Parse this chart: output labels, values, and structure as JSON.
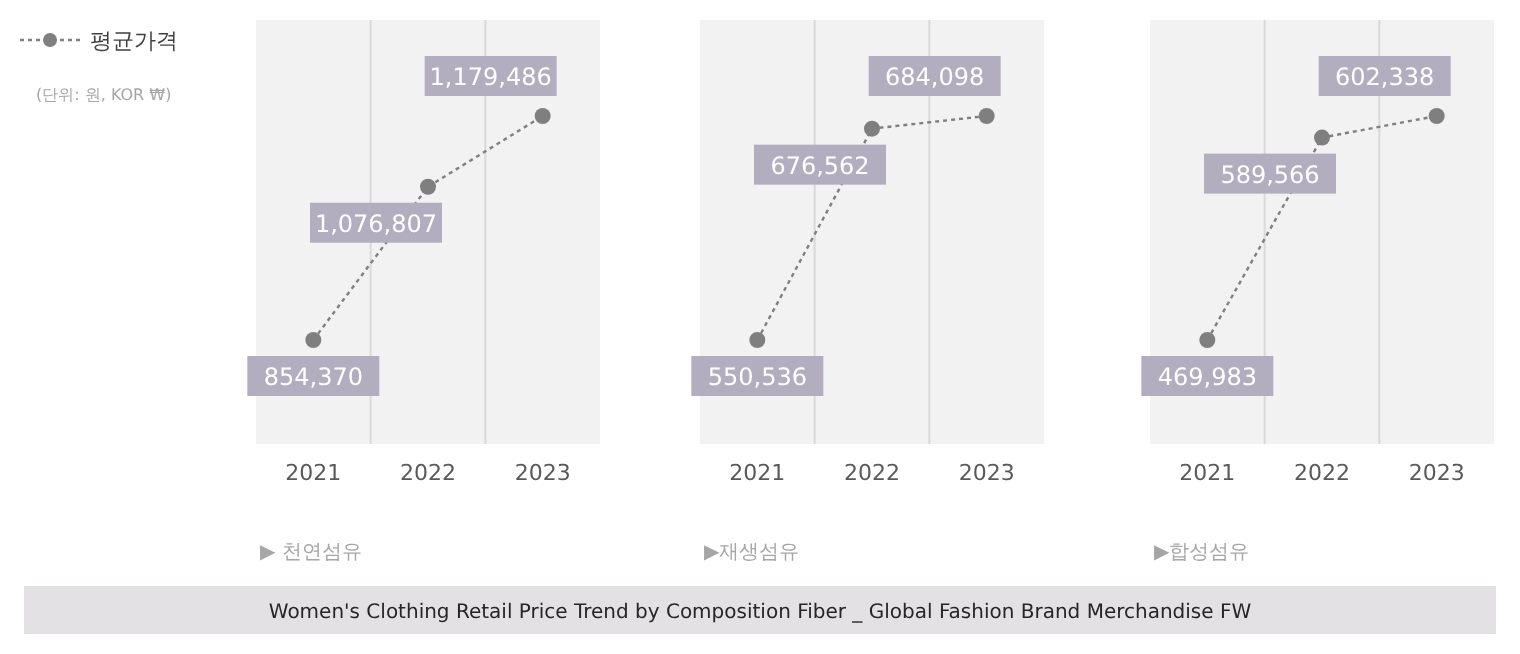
{
  "chart_data": [
    {
      "type": "line",
      "xlabel": "▶ 천연섬유",
      "categories": [
        "2021",
        "2022",
        "2023"
      ],
      "series": [
        {
          "name": "평균가격",
          "color": "#7f7f7f",
          "values": [
            854370,
            1076807,
            1179486
          ],
          "value_labels": [
            "854,370",
            "1,076,807",
            "1,179,486"
          ]
        }
      ],
      "marker": "circle",
      "line_style": "dotted",
      "grid": "x",
      "legend": "top left",
      "annotations": [
        "(단위: 원, KOR ₩)",
        "Women's Clothing Retail Price Trend by Composition Fiber  _ Global Fashion Brand Merchandise FW"
      ]
    },
    {
      "type": "line",
      "xlabel": "▶재생섬유",
      "categories": [
        "2021",
        "2022",
        "2023"
      ],
      "series": [
        {
          "color": "#7f7f7f",
          "values": [
            550536,
            676562,
            684098
          ],
          "value_labels": [
            "550,536",
            "676,562",
            "684,098"
          ]
        }
      ],
      "marker": "circle",
      "line_style": "dotted",
      "grid": "x"
    },
    {
      "type": "line",
      "xlabel": "▶합성섬유",
      "categories": [
        "2021",
        "2022",
        "2023"
      ],
      "series": [
        {
          "color": "#7f7f7f",
          "values": [
            469983,
            589566,
            602338
          ],
          "value_labels": [
            "469,983",
            "589,566",
            "602,338"
          ]
        }
      ],
      "marker": "circle",
      "line_style": "dotted",
      "grid": "x"
    }
  ]
}
